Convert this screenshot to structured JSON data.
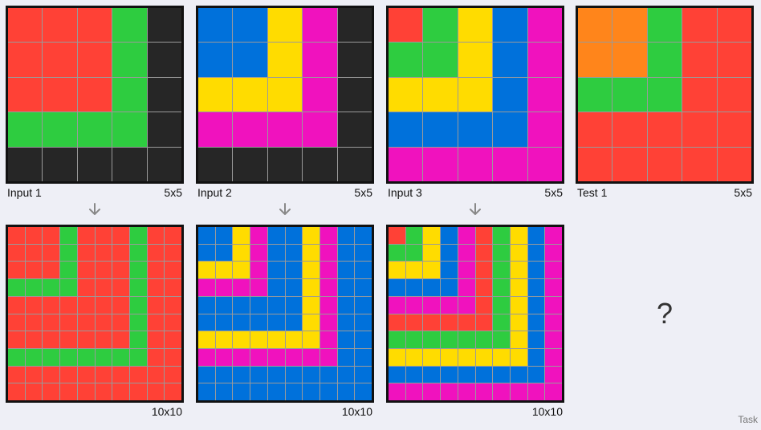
{
  "palette": {
    "0": "#262626",
    "1": "#0071db",
    "2": "#ff4136",
    "3": "#2ecc40",
    "4": "#ffdc00",
    "6": "#f012be",
    "7": "#ff851b"
  },
  "pairs": [
    {
      "input": {
        "label": "Input 1",
        "size": "5x5",
        "grid": [
          [
            2,
            2,
            2,
            3,
            0
          ],
          [
            2,
            2,
            2,
            3,
            0
          ],
          [
            2,
            2,
            2,
            3,
            0
          ],
          [
            3,
            3,
            3,
            3,
            0
          ],
          [
            0,
            0,
            0,
            0,
            0
          ]
        ]
      },
      "output": {
        "label": "",
        "size": "10x10",
        "grid": [
          [
            2,
            2,
            2,
            3,
            2,
            2,
            2,
            3,
            2,
            2
          ],
          [
            2,
            2,
            2,
            3,
            2,
            2,
            2,
            3,
            2,
            2
          ],
          [
            2,
            2,
            2,
            3,
            2,
            2,
            2,
            3,
            2,
            2
          ],
          [
            3,
            3,
            3,
            3,
            2,
            2,
            2,
            3,
            2,
            2
          ],
          [
            2,
            2,
            2,
            2,
            2,
            2,
            2,
            3,
            2,
            2
          ],
          [
            2,
            2,
            2,
            2,
            2,
            2,
            2,
            3,
            2,
            2
          ],
          [
            2,
            2,
            2,
            2,
            2,
            2,
            2,
            3,
            2,
            2
          ],
          [
            3,
            3,
            3,
            3,
            3,
            3,
            3,
            3,
            2,
            2
          ],
          [
            2,
            2,
            2,
            2,
            2,
            2,
            2,
            2,
            2,
            2
          ],
          [
            2,
            2,
            2,
            2,
            2,
            2,
            2,
            2,
            2,
            2
          ]
        ]
      }
    },
    {
      "input": {
        "label": "Input 2",
        "size": "5x5",
        "grid": [
          [
            1,
            1,
            4,
            6,
            0
          ],
          [
            1,
            1,
            4,
            6,
            0
          ],
          [
            4,
            4,
            4,
            6,
            0
          ],
          [
            6,
            6,
            6,
            6,
            0
          ],
          [
            0,
            0,
            0,
            0,
            0
          ]
        ]
      },
      "output": {
        "label": "",
        "size": "10x10",
        "grid": [
          [
            1,
            1,
            4,
            6,
            1,
            1,
            4,
            6,
            1,
            1
          ],
          [
            1,
            1,
            4,
            6,
            1,
            1,
            4,
            6,
            1,
            1
          ],
          [
            4,
            4,
            4,
            6,
            1,
            1,
            4,
            6,
            1,
            1
          ],
          [
            6,
            6,
            6,
            6,
            1,
            1,
            4,
            6,
            1,
            1
          ],
          [
            1,
            1,
            1,
            1,
            1,
            1,
            4,
            6,
            1,
            1
          ],
          [
            1,
            1,
            1,
            1,
            1,
            1,
            4,
            6,
            1,
            1
          ],
          [
            4,
            4,
            4,
            4,
            4,
            4,
            4,
            6,
            1,
            1
          ],
          [
            6,
            6,
            6,
            6,
            6,
            6,
            6,
            6,
            1,
            1
          ],
          [
            1,
            1,
            1,
            1,
            1,
            1,
            1,
            1,
            1,
            1
          ],
          [
            1,
            1,
            1,
            1,
            1,
            1,
            1,
            1,
            1,
            1
          ]
        ]
      }
    },
    {
      "input": {
        "label": "Input 3",
        "size": "5x5",
        "grid": [
          [
            2,
            3,
            4,
            1,
            6
          ],
          [
            3,
            3,
            4,
            1,
            6
          ],
          [
            4,
            4,
            4,
            1,
            6
          ],
          [
            1,
            1,
            1,
            1,
            6
          ],
          [
            6,
            6,
            6,
            6,
            6
          ]
        ]
      },
      "output": {
        "label": "",
        "size": "10x10",
        "grid": [
          [
            2,
            3,
            4,
            1,
            6,
            2,
            3,
            4,
            1,
            6
          ],
          [
            3,
            3,
            4,
            1,
            6,
            2,
            3,
            4,
            1,
            6
          ],
          [
            4,
            4,
            4,
            1,
            6,
            2,
            3,
            4,
            1,
            6
          ],
          [
            1,
            1,
            1,
            1,
            6,
            2,
            3,
            4,
            1,
            6
          ],
          [
            6,
            6,
            6,
            6,
            6,
            2,
            3,
            4,
            1,
            6
          ],
          [
            2,
            2,
            2,
            2,
            2,
            2,
            3,
            4,
            1,
            6
          ],
          [
            3,
            3,
            3,
            3,
            3,
            3,
            3,
            4,
            1,
            6
          ],
          [
            4,
            4,
            4,
            4,
            4,
            4,
            4,
            4,
            1,
            6
          ],
          [
            1,
            1,
            1,
            1,
            1,
            1,
            1,
            1,
            1,
            6
          ],
          [
            6,
            6,
            6,
            6,
            6,
            6,
            6,
            6,
            6,
            6
          ]
        ]
      }
    }
  ],
  "test": {
    "label": "Test 1",
    "size": "5x5",
    "grid": [
      [
        7,
        7,
        3,
        2,
        2
      ],
      [
        7,
        7,
        3,
        2,
        2
      ],
      [
        3,
        3,
        3,
        2,
        2
      ],
      [
        2,
        2,
        2,
        2,
        2
      ],
      [
        2,
        2,
        2,
        2,
        2
      ]
    ]
  },
  "unknown_output": "?",
  "task_label": "Task"
}
